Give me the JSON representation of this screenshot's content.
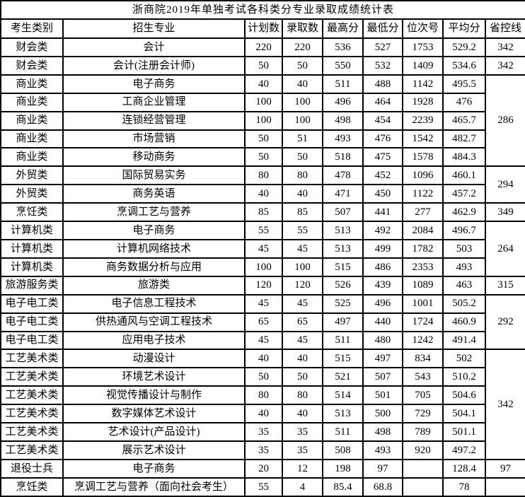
{
  "title": "浙商院2019年单独考试各科类分专业录取成绩统计表",
  "table": {
    "columns": [
      {
        "key": "category",
        "label": "考生类别"
      },
      {
        "key": "major",
        "label": "招生专业"
      },
      {
        "key": "plan",
        "label": "计划数"
      },
      {
        "key": "admitted",
        "label": "录取数"
      },
      {
        "key": "highest",
        "label": "最高分"
      },
      {
        "key": "lowest",
        "label": "最低分"
      },
      {
        "key": "rank",
        "label": "位次号"
      },
      {
        "key": "average",
        "label": "平均分"
      },
      {
        "key": "control_line",
        "label": "省控线"
      }
    ],
    "rows": [
      {
        "cells": {
          "category": "财会类",
          "major": "会计",
          "plan": "220",
          "admitted": "220",
          "highest": "536",
          "lowest": "527",
          "rank": "1753",
          "average": "529.2"
        },
        "control_line": {
          "value": "342",
          "rowspan": 1
        }
      },
      {
        "cells": {
          "category": "财会类",
          "major": "会计(注册会计师)",
          "plan": "50",
          "admitted": "50",
          "highest": "550",
          "lowest": "532",
          "rank": "1409",
          "average": "534.6"
        },
        "control_line": {
          "value": "342",
          "rowspan": 1
        }
      },
      {
        "cells": {
          "category": "商业类",
          "major": "电子商务",
          "plan": "40",
          "admitted": "40",
          "highest": "511",
          "lowest": "488",
          "rank": "1142",
          "average": "495.5"
        },
        "control_line": {
          "value": "286",
          "rowspan": 5
        }
      },
      {
        "cells": {
          "category": "商业类",
          "major": "工商企业管理",
          "plan": "100",
          "admitted": "100",
          "highest": "496",
          "lowest": "464",
          "rank": "1928",
          "average": "476"
        },
        "control_line": null
      },
      {
        "cells": {
          "category": "商业类",
          "major": "连锁经营管理",
          "plan": "100",
          "admitted": "100",
          "highest": "498",
          "lowest": "454",
          "rank": "2239",
          "average": "465.7"
        },
        "control_line": null
      },
      {
        "cells": {
          "category": "商业类",
          "major": "市场营销",
          "plan": "50",
          "admitted": "51",
          "highest": "493",
          "lowest": "476",
          "rank": "1542",
          "average": "482.7"
        },
        "control_line": null
      },
      {
        "cells": {
          "category": "商业类",
          "major": "移动商务",
          "plan": "50",
          "admitted": "50",
          "highest": "518",
          "lowest": "475",
          "rank": "1578",
          "average": "484.3"
        },
        "control_line": null
      },
      {
        "cells": {
          "category": "外贸类",
          "major": "国际贸易实务",
          "plan": "80",
          "admitted": "80",
          "highest": "478",
          "lowest": "452",
          "rank": "1096",
          "average": "460.1"
        },
        "control_line": {
          "value": "294",
          "rowspan": 2
        }
      },
      {
        "cells": {
          "category": "外贸类",
          "major": "商务英语",
          "plan": "40",
          "admitted": "40",
          "highest": "471",
          "lowest": "450",
          "rank": "1122",
          "average": "457.2"
        },
        "control_line": null
      },
      {
        "cells": {
          "category": "烹饪类",
          "major": "烹调工艺与营养",
          "plan": "85",
          "admitted": "85",
          "highest": "507",
          "lowest": "441",
          "rank": "277",
          "average": "462.9"
        },
        "control_line": {
          "value": "349",
          "rowspan": 1
        }
      },
      {
        "cells": {
          "category": "计算机类",
          "major": "电子商务",
          "plan": "55",
          "admitted": "55",
          "highest": "513",
          "lowest": "492",
          "rank": "2084",
          "average": "496.7"
        },
        "control_line": {
          "value": "264",
          "rowspan": 3
        }
      },
      {
        "cells": {
          "category": "计算机类",
          "major": "计算机网络技术",
          "plan": "45",
          "admitted": "45",
          "highest": "513",
          "lowest": "499",
          "rank": "1782",
          "average": "503"
        },
        "control_line": null
      },
      {
        "cells": {
          "category": "计算机类",
          "major": "商务数据分析与应用",
          "plan": "100",
          "admitted": "100",
          "highest": "515",
          "lowest": "486",
          "rank": "2353",
          "average": "493"
        },
        "control_line": null
      },
      {
        "cells": {
          "category": "旅游服务类",
          "major": "旅游类",
          "plan": "120",
          "admitted": "120",
          "highest": "526",
          "lowest": "439",
          "rank": "1089",
          "average": "463"
        },
        "control_line": {
          "value": "315",
          "rowspan": 1
        }
      },
      {
        "cells": {
          "category": "电子电工类",
          "major": "电子信息工程技术",
          "plan": "45",
          "admitted": "45",
          "highest": "525",
          "lowest": "496",
          "rank": "1001",
          "average": "505.2"
        },
        "control_line": {
          "value": "292",
          "rowspan": 3
        }
      },
      {
        "cells": {
          "category": "电子电工类",
          "major": "供热通风与空调工程技术",
          "plan": "65",
          "admitted": "65",
          "highest": "497",
          "lowest": "440",
          "rank": "1724",
          "average": "460.9"
        },
        "control_line": null
      },
      {
        "cells": {
          "category": "电子电工类",
          "major": "应用电子技术",
          "plan": "45",
          "admitted": "45",
          "highest": "511",
          "lowest": "480",
          "rank": "1242",
          "average": "491.4"
        },
        "control_line": null
      },
      {
        "cells": {
          "category": "工艺美术类",
          "major": "动漫设计",
          "plan": "40",
          "admitted": "40",
          "highest": "515",
          "lowest": "497",
          "rank": "834",
          "average": "502"
        },
        "control_line": {
          "value": "342",
          "rowspan": 6
        }
      },
      {
        "cells": {
          "category": "工艺美术类",
          "major": "环境艺术设计",
          "plan": "50",
          "admitted": "50",
          "highest": "521",
          "lowest": "507",
          "rank": "543",
          "average": "510.2"
        },
        "control_line": null
      },
      {
        "cells": {
          "category": "工艺美术类",
          "major": "视觉传播设计与制作",
          "plan": "80",
          "admitted": "80",
          "highest": "514",
          "lowest": "501",
          "rank": "705",
          "average": "504.6"
        },
        "control_line": null
      },
      {
        "cells": {
          "category": "工艺美术类",
          "major": "数字媒体艺术设计",
          "plan": "40",
          "admitted": "40",
          "highest": "513",
          "lowest": "500",
          "rank": "729",
          "average": "504.1"
        },
        "control_line": null
      },
      {
        "cells": {
          "category": "工艺美术类",
          "major": "艺术设计(产品设计)",
          "plan": "35",
          "admitted": "35",
          "highest": "511",
          "lowest": "498",
          "rank": "789",
          "average": "501.1"
        },
        "control_line": null
      },
      {
        "cells": {
          "category": "工艺美术类",
          "major": "展示艺术设计",
          "plan": "35",
          "admitted": "35",
          "highest": "508",
          "lowest": "493",
          "rank": "920",
          "average": "497.2"
        },
        "control_line": null
      },
      {
        "cells": {
          "category": "退役士兵",
          "major": "电子商务",
          "plan": "20",
          "admitted": "12",
          "highest": "198",
          "lowest": "97",
          "rank": "",
          "average": "128.4"
        },
        "control_line": {
          "value": "97",
          "rowspan": 1
        }
      },
      {
        "cells": {
          "category": "烹饪类",
          "major": "烹调工艺与营养（面向社会考生）",
          "plan": "55",
          "admitted": "4",
          "highest": "85.4",
          "lowest": "68.8",
          "rank": "",
          "average": "78"
        },
        "control_line": {
          "value": "",
          "rowspan": 1
        }
      }
    ]
  }
}
